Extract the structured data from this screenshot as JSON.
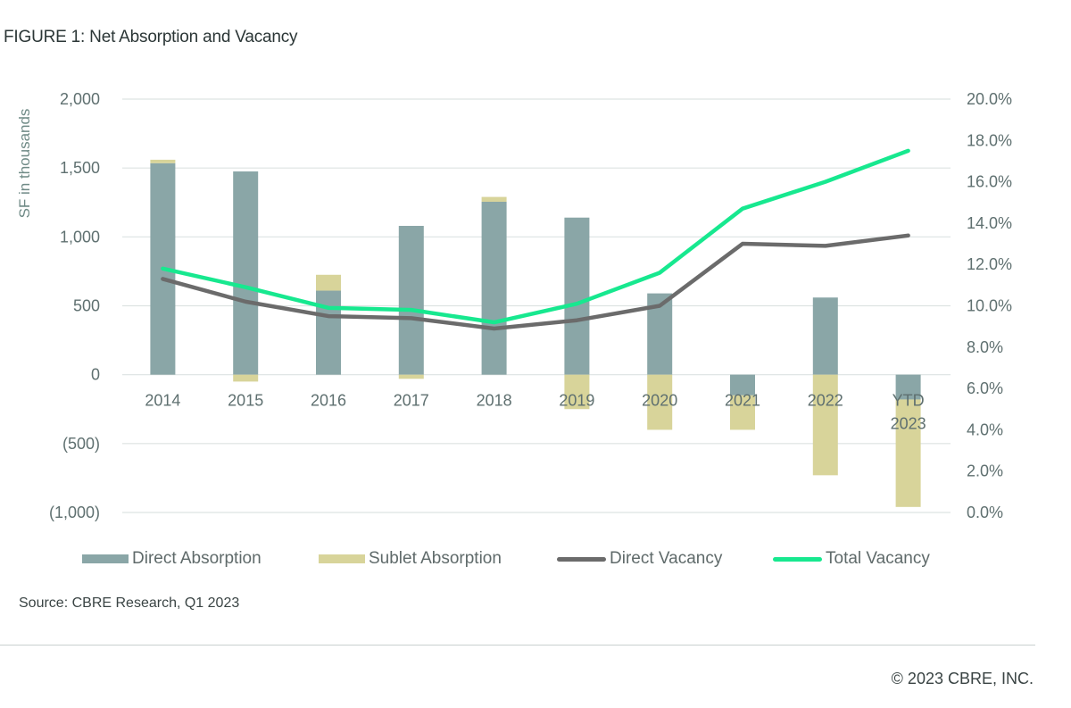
{
  "figure": {
    "title": "FIGURE 1: Net Absorption and Vacancy",
    "source": "Source: CBRE Research, Q1 2023",
    "copyright": "© 2023 CBRE, INC."
  },
  "chart_data": {
    "type": "bar",
    "title": "FIGURE 1: Net Absorption and Vacancy",
    "ylabel": "SF in thousands",
    "ylim": [
      -1000,
      2000
    ],
    "y_ticks": [
      "2,000",
      "1,500",
      "1,000",
      "500",
      "0",
      "(500)",
      "(1,000)"
    ],
    "y2lim": [
      0,
      20
    ],
    "y2_ticks": [
      "20.0%",
      "18.0%",
      "16.0%",
      "14.0%",
      "12.0%",
      "10.0%",
      "8.0%",
      "6.0%",
      "4.0%",
      "2.0%",
      "0.0%"
    ],
    "categories": [
      "2014",
      "2015",
      "2016",
      "2017",
      "2018",
      "2019",
      "2020",
      "2021",
      "2022",
      "YTD 2023"
    ],
    "category_lines": [
      [
        "2014"
      ],
      [
        "2015"
      ],
      [
        "2016"
      ],
      [
        "2017"
      ],
      [
        "2018"
      ],
      [
        "2019"
      ],
      [
        "2020"
      ],
      [
        "2021"
      ],
      [
        "2022"
      ],
      [
        "YTD",
        "2023"
      ]
    ],
    "grid": true,
    "legend_position": "bottom",
    "series": [
      {
        "name": "Direct Absorption",
        "type": "bar",
        "axis": "left",
        "color": "#8aa6a7",
        "values": [
          1535,
          1475,
          610,
          1080,
          1255,
          1140,
          590,
          -150,
          560,
          -180
        ]
      },
      {
        "name": "Sublet Absorption",
        "type": "bar",
        "axis": "left",
        "color": "#d8d49a",
        "values": [
          25,
          -50,
          115,
          -30,
          35,
          -250,
          -400,
          -250,
          -730,
          -780
        ]
      },
      {
        "name": "Direct Vacancy",
        "type": "line",
        "axis": "right",
        "color": "#6b6b6b",
        "values": [
          11.3,
          10.2,
          9.5,
          9.4,
          8.9,
          9.3,
          10.0,
          13.0,
          12.9,
          13.4
        ]
      },
      {
        "name": "Total Vacancy",
        "type": "line",
        "axis": "right",
        "color": "#17e88f",
        "values": [
          11.8,
          10.9,
          9.9,
          9.8,
          9.2,
          10.1,
          11.6,
          14.7,
          16.0,
          17.5
        ]
      }
    ]
  }
}
